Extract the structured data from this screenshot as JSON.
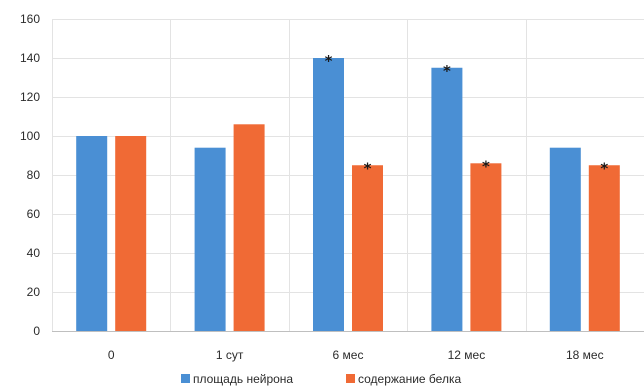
{
  "chart_data": {
    "type": "bar",
    "categories": [
      "0",
      "1 сут",
      "6 мес",
      "12 мес",
      "18 мес"
    ],
    "series": [
      {
        "name": "площадь нейрона",
        "color": "#4a8fd4",
        "values": [
          100,
          94,
          140,
          135,
          94
        ],
        "significant": [
          false,
          false,
          true,
          true,
          false
        ]
      },
      {
        "name": "содержание белка",
        "color": "#f06a35",
        "values": [
          100,
          106,
          85,
          86,
          85
        ],
        "significant": [
          false,
          false,
          true,
          true,
          true
        ]
      }
    ],
    "significance_marker": "*",
    "ylim": [
      0,
      160
    ],
    "yticks": [
      0,
      20,
      40,
      60,
      80,
      100,
      120,
      140,
      160
    ],
    "grid": true,
    "legend_position": "bottom"
  }
}
